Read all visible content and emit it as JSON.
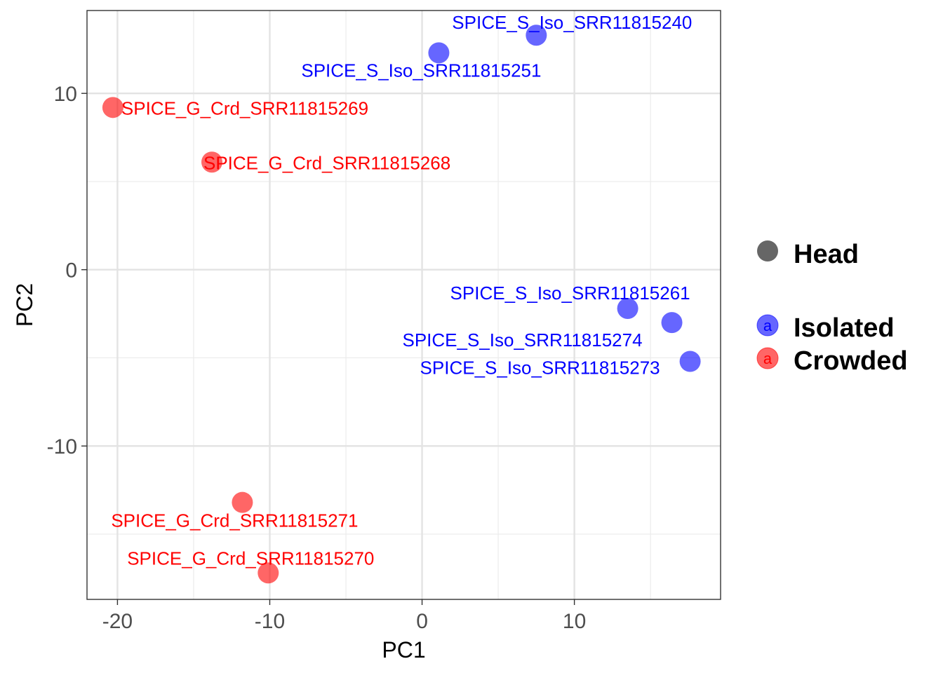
{
  "chart_data": {
    "type": "scatter",
    "title": "",
    "xlabel": "PC1",
    "ylabel": "PC2",
    "xlim": [
      -22.0,
      19.6
    ],
    "ylim": [
      -18.7,
      14.7
    ],
    "grid": true,
    "xticks": [
      -20,
      -10,
      0,
      10
    ],
    "xtick_labels": [
      "-20",
      "-10",
      "0",
      "10"
    ],
    "yticks": [
      -10,
      0,
      10
    ],
    "ytick_labels": [
      "-10",
      "0",
      "10"
    ],
    "colors": {
      "Isolated": "#0000ff",
      "Crowded": "#ff0000",
      "shape": "#666666"
    },
    "series": [
      {
        "name": "Isolated",
        "points": [
          {
            "x": 7.5,
            "y": 13.3,
            "label": "SPICE_S_Iso_SRR11815240"
          },
          {
            "x": 1.1,
            "y": 12.3,
            "label": "SPICE_S_Iso_SRR11815251"
          },
          {
            "x": 13.5,
            "y": -2.2,
            "label": "SPICE_S_Iso_SRR11815261"
          },
          {
            "x": 16.4,
            "y": -3.0,
            "label": "SPICE_S_Iso_SRR11815274"
          },
          {
            "x": 17.6,
            "y": -5.2,
            "label": "SPICE_S_Iso_SRR11815273"
          }
        ]
      },
      {
        "name": "Crowded",
        "points": [
          {
            "x": -20.3,
            "y": 9.2,
            "label": "SPICE_G_Crd_SRR11815269"
          },
          {
            "x": -13.8,
            "y": 6.1,
            "label": "SPICE_G_Crd_SRR11815268"
          },
          {
            "x": -11.8,
            "y": -13.2,
            "label": "SPICE_G_Crd_SRR11815271"
          },
          {
            "x": -10.1,
            "y": -17.2,
            "label": "SPICE_G_Crd_SRR11815270"
          }
        ]
      }
    ],
    "legend": {
      "position": "right",
      "shape_title": "Head",
      "key_glyph": "a",
      "entries": [
        "Isolated",
        "Crowded"
      ]
    }
  }
}
